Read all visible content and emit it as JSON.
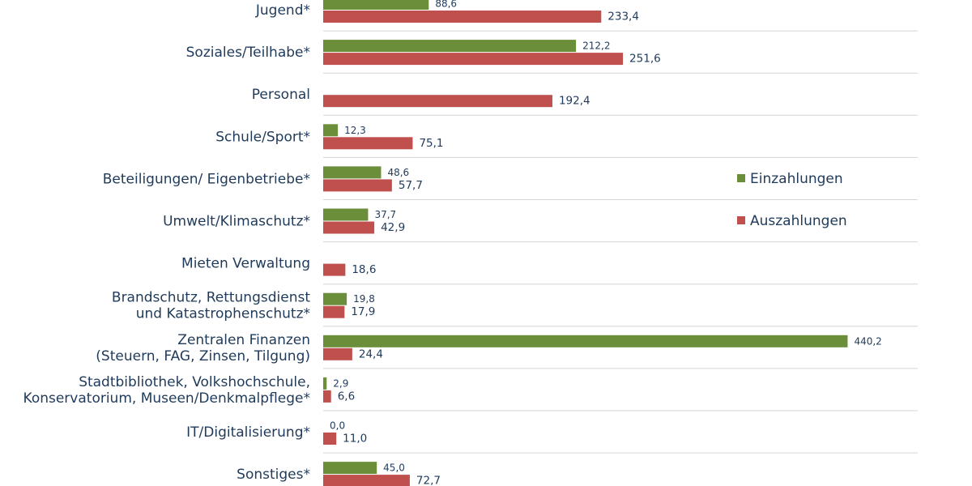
{
  "chart_data": {
    "type": "bar",
    "orientation": "horizontal",
    "categories": [
      "Jugend*",
      "Soziales/Teilhabe*",
      "Personal",
      "Schule/Sport*",
      "Beteiligungen/ Eigenbetriebe*",
      "Umwelt/Klimaschutz*",
      "Mieten Verwaltung",
      "Brandschutz, Rettungsdienst und Katastrophenschutz*",
      "Zentralen Finanzen (Steuern, FAG, Zinsen, Tilgung)",
      "Stadtbibliothek, Volkshochschule, Konservatorium, Museen/Denkmalpflege*",
      "IT/Digitalisierung*",
      "Sonstiges*"
    ],
    "category_lines": [
      [
        "Jugend*"
      ],
      [
        "Soziales/Teilhabe*"
      ],
      [
        "Personal"
      ],
      [
        "Schule/Sport*"
      ],
      [
        "Beteiligungen/ Eigenbetriebe*"
      ],
      [
        "Umwelt/Klimaschutz*"
      ],
      [
        "Mieten Verwaltung"
      ],
      [
        "Brandschutz, Rettungsdienst",
        "und Katastrophenschutz*"
      ],
      [
        "Zentralen Finanzen",
        "(Steuern, FAG, Zinsen, Tilgung)"
      ],
      [
        "Stadtbibliothek, Volkshochschule,",
        "Konservatorium, Museen/Denkmalpflege*"
      ],
      [
        "IT/Digitalisierung*"
      ],
      [
        "Sonstiges*"
      ]
    ],
    "series": [
      {
        "name": "Einzahlungen",
        "color": "#6b8e3a",
        "values": [
          88.6,
          212.2,
          null,
          12.3,
          48.6,
          37.7,
          null,
          19.8,
          440.2,
          2.9,
          0.0,
          45.0
        ],
        "labels": [
          "88,6",
          "212,2",
          "",
          "12,3",
          "48,6",
          "37,7",
          "",
          "19,8",
          "440,2",
          "2,9",
          "0,0",
          "45,0"
        ]
      },
      {
        "name": "Auszahlungen",
        "color": "#c0504d",
        "values": [
          233.4,
          251.6,
          192.4,
          75.1,
          57.7,
          42.9,
          18.6,
          17.9,
          24.4,
          6.6,
          11.0,
          72.7
        ],
        "labels": [
          "233,4",
          "251,6",
          "192,4",
          "75,1",
          "57,7",
          "42,9",
          "18,6",
          "17,9",
          "24,4",
          "6,6",
          "11,0",
          "72,7"
        ]
      }
    ],
    "legend_position": "right",
    "grid": "horizontal separators"
  }
}
